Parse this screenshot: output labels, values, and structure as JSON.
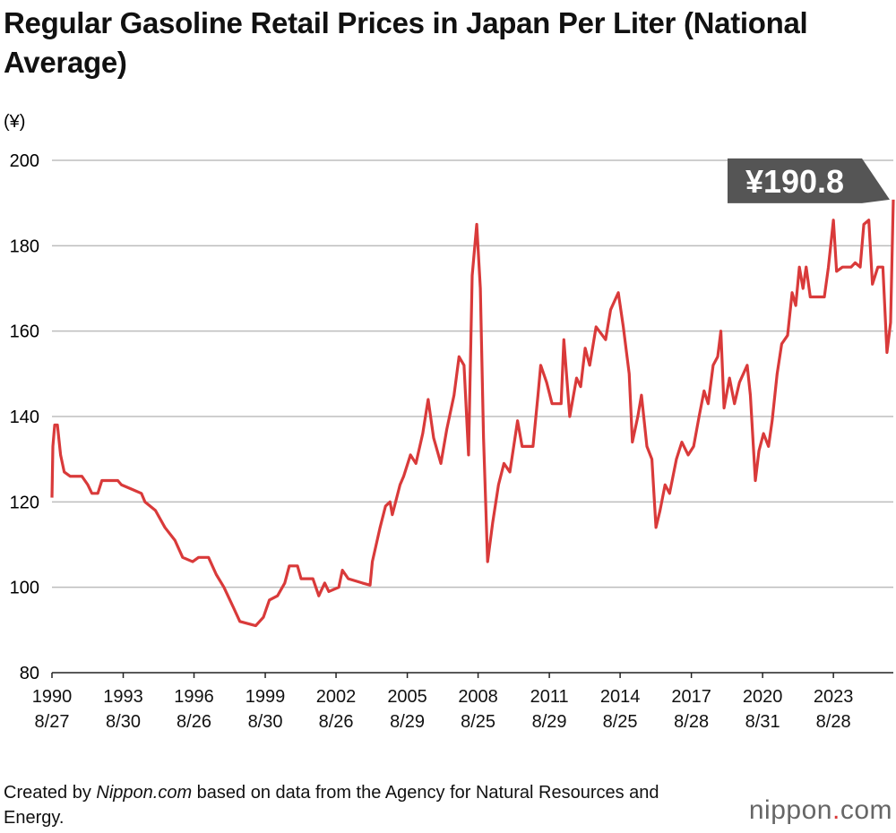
{
  "chart_data": {
    "type": "line",
    "title": "Regular Gasoline Retail Prices in Japan Per Liter (National Average)",
    "y_unit": "(¥)",
    "source": [
      "Created by ",
      "Nippon.com",
      " based on data from the Agency for Natural Resources and Energy."
    ],
    "logo": [
      "nippon",
      ".",
      "com"
    ],
    "value_label": "¥190.8",
    "ylim": [
      80,
      200
    ],
    "yticks": [
      80,
      100,
      120,
      140,
      160,
      180,
      200
    ],
    "grid": true,
    "xlim": [
      "1990-08-27",
      "2026-03-09"
    ],
    "xticks": [
      {
        "value": "1990-08-27",
        "label": "1990\n8/27"
      },
      {
        "value": "1993-08-30",
        "label": "1993\n8/30"
      },
      {
        "value": "1996-08-26",
        "label": "1996\n8/26"
      },
      {
        "value": "1999-08-30",
        "label": "1999\n8/30"
      },
      {
        "value": "2002-08-26",
        "label": "2002\n8/26"
      },
      {
        "value": "2005-08-29",
        "label": "2005\n8/29"
      },
      {
        "value": "2008-08-25",
        "label": "2008\n8/25"
      },
      {
        "value": "2011-08-29",
        "label": "2011\n8/29"
      },
      {
        "value": "2014-08-25",
        "label": "2014\n8/25"
      },
      {
        "value": "2017-08-28",
        "label": "2017\n8/28"
      },
      {
        "value": "2020-08-31",
        "label": "2020\n8/31"
      },
      {
        "value": "2023-08-28",
        "label": "2023\n8/28"
      }
    ],
    "color": "#d93a3a",
    "x": [
      "1990-08-27",
      "1990-09-10",
      "1990-10-08",
      "1990-11-19",
      "1991-01-07",
      "1991-03-04",
      "1991-06-03",
      "1991-12-02",
      "1992-03-02",
      "1992-05-04",
      "1992-08-03",
      "1992-10-05",
      "1993-06-07",
      "1993-08-02",
      "1994-01-03",
      "1994-06-06",
      "1994-08-01",
      "1995-01-09",
      "1995-06-05",
      "1995-11-06",
      "1996-03-04",
      "1996-08-05",
      "1996-11-04",
      "1997-04-07",
      "1997-08-04",
      "1997-12-01",
      "1998-05-04",
      "1998-08-03",
      "1999-04-05",
      "1999-08-02",
      "1999-11-01",
      "2000-03-06",
      "2000-06-26",
      "2000-09-04",
      "2001-01-08",
      "2001-03-05",
      "2001-09-03",
      "2001-12-03",
      "2002-03-04",
      "2002-05-06",
      "2002-10-07",
      "2002-12-02",
      "2003-03-03",
      "2003-10-06",
      "2004-02-02",
      "2004-03-08",
      "2004-07-05",
      "2004-09-27",
      "2004-12-06",
      "2005-01-10",
      "2005-05-09",
      "2005-07-04",
      "2005-10-17",
      "2006-01-09",
      "2006-04-24",
      "2006-07-17",
      "2006-10-09",
      "2007-01-29",
      "2007-04-30",
      "2007-08-20",
      "2007-11-05",
      "2008-01-21",
      "2008-03-31",
      "2008-05-26",
      "2008-08-04",
      "2008-09-29",
      "2008-11-17",
      "2009-01-19",
      "2009-04-06",
      "2009-07-06",
      "2009-09-28",
      "2009-12-28",
      "2010-04-26",
      "2010-07-05",
      "2010-12-20",
      "2011-03-07",
      "2011-04-18",
      "2011-07-18",
      "2011-10-10",
      "2012-02-27",
      "2012-04-09",
      "2012-07-09",
      "2012-10-22",
      "2012-12-24",
      "2013-03-04",
      "2013-05-13",
      "2013-08-19",
      "2014-01-13",
      "2014-03-31",
      "2014-07-28",
      "2014-10-13",
      "2015-01-12",
      "2015-03-02",
      "2015-05-25",
      "2015-07-20",
      "2015-10-12",
      "2015-12-28",
      "2016-02-29",
      "2016-05-02",
      "2016-07-18",
      "2016-09-26",
      "2017-01-09",
      "2017-04-03",
      "2017-07-10",
      "2017-10-02",
      "2017-12-25",
      "2018-03-12",
      "2018-05-14",
      "2018-07-30",
      "2018-10-08",
      "2018-11-26",
      "2019-01-14",
      "2019-04-08",
      "2019-06-24",
      "2019-09-09",
      "2020-01-06",
      "2020-02-24",
      "2020-05-11",
      "2020-07-06",
      "2020-09-14",
      "2020-11-30",
      "2021-01-25",
      "2021-04-12",
      "2021-06-21",
      "2021-09-20",
      "2021-11-29",
      "2022-01-24",
      "2022-03-21",
      "2022-05-16",
      "2022-07-04",
      "2022-09-05",
      "2022-12-26",
      "2023-04-10",
      "2023-06-12",
      "2023-08-28",
      "2023-10-16",
      "2024-01-15",
      "2024-05-27",
      "2024-07-29",
      "2024-10-14",
      "2024-12-09",
      "2025-02-24",
      "2025-04-21",
      "2025-07-14",
      "2025-09-29",
      "2025-12-01",
      "2026-01-26",
      "2026-03-09"
    ],
    "values": [
      121,
      133,
      138,
      138,
      131,
      127,
      126,
      126,
      124,
      122,
      122,
      125,
      125,
      124,
      123,
      122,
      120,
      118,
      114,
      111,
      107,
      106,
      107,
      107,
      103,
      100,
      95,
      92,
      91,
      93,
      97,
      98,
      101,
      105,
      105,
      102,
      102,
      98,
      101,
      99,
      100,
      104,
      102,
      101,
      100.5,
      106,
      114,
      119,
      120,
      117,
      124,
      126,
      131,
      129,
      136,
      144,
      135,
      129,
      137,
      145,
      154,
      152,
      131,
      173,
      185,
      170,
      135,
      106,
      115,
      124,
      129,
      127,
      139,
      133,
      133,
      145,
      152,
      148,
      143,
      143,
      158,
      140,
      149,
      147,
      156,
      152,
      161,
      158,
      165,
      169,
      161,
      150,
      134,
      140,
      145,
      133,
      130,
      114,
      118,
      124,
      122,
      130,
      134,
      131,
      133,
      140,
      146,
      143,
      152,
      154,
      160,
      142,
      149,
      143,
      148,
      152,
      145,
      125,
      132,
      136,
      133,
      139,
      150,
      157,
      159,
      169,
      166,
      175,
      170,
      175,
      168,
      168,
      168,
      175,
      186,
      174,
      175,
      175,
      176,
      175,
      185,
      186,
      171,
      175,
      175,
      155,
      162,
      190.8
    ]
  }
}
